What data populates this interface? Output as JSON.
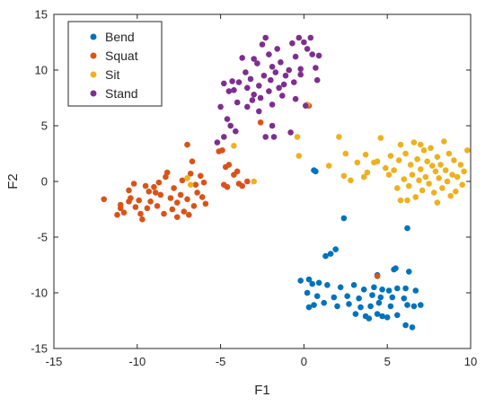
{
  "colors": {
    "Bend": "#0072BD",
    "Squat": "#D95319",
    "Sit": "#EDB120",
    "Stand": "#7E2F8E",
    "axis": "#262626",
    "background": "#ffffff"
  },
  "chart_data": {
    "type": "scatter",
    "xlabel": "F1",
    "ylabel": "F2",
    "xlim": [
      -15,
      10
    ],
    "ylim": [
      -15,
      15
    ],
    "xticks": [
      -15,
      -10,
      -5,
      0,
      5,
      10
    ],
    "yticks": [
      -15,
      -10,
      -5,
      0,
      5,
      10,
      15
    ],
    "grid": false,
    "legend_position": "top-left",
    "series": [
      {
        "name": "Bend",
        "color": "#0072BD",
        "points": [
          [
            0.6,
            1.0
          ],
          [
            0.7,
            0.9
          ],
          [
            2.4,
            -3.3
          ],
          [
            6.2,
            -4.2
          ],
          [
            1.9,
            -6.1
          ],
          [
            1.6,
            -6.5
          ],
          [
            1.3,
            -6.7
          ],
          [
            4.4,
            -8.4
          ],
          [
            5.4,
            -7.9
          ],
          [
            5.5,
            -7.8
          ],
          [
            6.3,
            -8.1
          ],
          [
            0.3,
            -8.8
          ],
          [
            -0.2,
            -8.9
          ],
          [
            0.5,
            -9.2
          ],
          [
            0.9,
            -9.1
          ],
          [
            1.4,
            -9.3
          ],
          [
            2.2,
            -9.5
          ],
          [
            3.0,
            -9.3
          ],
          [
            3.6,
            -9.7
          ],
          [
            4.2,
            -9.5
          ],
          [
            4.7,
            -9.7
          ],
          [
            5.1,
            -9.8
          ],
          [
            5.6,
            -9.6
          ],
          [
            6.1,
            -9.6
          ],
          [
            6.7,
            -9.8
          ],
          [
            0.2,
            -10.0
          ],
          [
            0.8,
            -10.3
          ],
          [
            1.8,
            -10.4
          ],
          [
            2.6,
            -10.3
          ],
          [
            3.3,
            -10.5
          ],
          [
            4.1,
            -10.2
          ],
          [
            4.6,
            -10.4
          ],
          [
            5.3,
            -10.4
          ],
          [
            6.0,
            -10.5
          ],
          [
            0.6,
            -11.1
          ],
          [
            1.2,
            -10.9
          ],
          [
            2.0,
            -11.2
          ],
          [
            2.7,
            -11.0
          ],
          [
            3.4,
            -11.3
          ],
          [
            4.0,
            -11.2
          ],
          [
            4.5,
            -10.9
          ],
          [
            5.2,
            -11.2
          ],
          [
            6.2,
            -11.1
          ],
          [
            6.6,
            -11.2
          ],
          [
            7.0,
            -11.1
          ],
          [
            0.3,
            -11.3
          ],
          [
            3.1,
            -11.9
          ],
          [
            3.7,
            -12.1
          ],
          [
            4.4,
            -11.9
          ],
          [
            5.0,
            -12.2
          ],
          [
            5.6,
            -12.0
          ],
          [
            3.9,
            -12.3
          ],
          [
            6.1,
            -12.9
          ],
          [
            6.5,
            -13.1
          ],
          [
            4.7,
            -12.1
          ]
        ]
      },
      {
        "name": "Squat",
        "color": "#D95319",
        "points": [
          [
            -12.0,
            -1.6
          ],
          [
            -11.0,
            -2.1
          ],
          [
            -11.2,
            -3.0
          ],
          [
            -10.8,
            -2.8
          ],
          [
            -10.5,
            -0.8
          ],
          [
            -10.2,
            -0.2
          ],
          [
            -10.4,
            -1.5
          ],
          [
            -10.1,
            -2.3
          ],
          [
            -9.9,
            -1.7
          ],
          [
            -9.7,
            -3.4
          ],
          [
            -9.4,
            -2.4
          ],
          [
            -9.3,
            -0.9
          ],
          [
            -9.0,
            -0.5
          ],
          [
            -9.2,
            -1.8
          ],
          [
            -8.8,
            -2.2
          ],
          [
            -8.7,
            -0.1
          ],
          [
            -8.6,
            -1.2
          ],
          [
            -8.4,
            -2.9
          ],
          [
            -8.3,
            0.4
          ],
          [
            -8.2,
            0.8
          ],
          [
            -8.0,
            -1.5
          ],
          [
            -7.9,
            -2.5
          ],
          [
            -7.8,
            -0.6
          ],
          [
            -7.6,
            -1.9
          ],
          [
            -7.4,
            -1.2
          ],
          [
            -7.3,
            0.1
          ],
          [
            -7.2,
            -2.7
          ],
          [
            -7.0,
            -1.6
          ],
          [
            -6.9,
            -3.0
          ],
          [
            -6.7,
            1.8
          ],
          [
            -6.8,
            0.7
          ],
          [
            -6.5,
            -0.3
          ],
          [
            -6.6,
            -2.2
          ],
          [
            -6.4,
            -1.0
          ],
          [
            -6.2,
            0.5
          ],
          [
            -6.1,
            -1.4
          ],
          [
            -6.0,
            -0.1
          ],
          [
            -5.9,
            -2.0
          ],
          [
            -7.0,
            3.3
          ],
          [
            -5.1,
            2.7
          ],
          [
            -4.9,
            2.8
          ],
          [
            -4.7,
            1.3
          ],
          [
            -4.5,
            1.5
          ],
          [
            -4.8,
            -0.3
          ],
          [
            -4.6,
            -0.5
          ],
          [
            -4.2,
            0.6
          ],
          [
            -4.0,
            0.9
          ],
          [
            -3.9,
            -0.2
          ],
          [
            -3.7,
            -0.4
          ],
          [
            -3.4,
            0.0
          ],
          [
            -2.6,
            5.3
          ],
          [
            0.3,
            6.8
          ],
          [
            4.4,
            -8.5
          ],
          [
            -10.5,
            -1.8
          ],
          [
            -9.5,
            -0.4
          ],
          [
            -8.9,
            -1.0
          ],
          [
            -11.0,
            -2.4
          ],
          [
            -7.6,
            -3.2
          ],
          [
            -9.8,
            -2.9
          ]
        ]
      },
      {
        "name": "Sit",
        "color": "#EDB120",
        "points": [
          [
            -7.0,
            0.3
          ],
          [
            -6.8,
            -0.3
          ],
          [
            -4.2,
            3.2
          ],
          [
            -3.0,
            0.0
          ],
          [
            -0.4,
            4.0
          ],
          [
            0.2,
            6.9
          ],
          [
            -0.3,
            2.3
          ],
          [
            1.5,
            1.4
          ],
          [
            2.1,
            4.0
          ],
          [
            2.4,
            0.5
          ],
          [
            2.5,
            2.5
          ],
          [
            3.2,
            1.7
          ],
          [
            3.7,
            2.4
          ],
          [
            2.8,
            0.1
          ],
          [
            3.6,
            0.4
          ],
          [
            4.2,
            1.7
          ],
          [
            4.4,
            1.8
          ],
          [
            4.6,
            3.9
          ],
          [
            4.9,
            1.2
          ],
          [
            5.1,
            0.6
          ],
          [
            5.2,
            2.3
          ],
          [
            5.4,
            1.0
          ],
          [
            5.6,
            -0.6
          ],
          [
            5.7,
            1.9
          ],
          [
            5.8,
            3.3
          ],
          [
            6.0,
            0.2
          ],
          [
            6.1,
            2.5
          ],
          [
            6.3,
            -0.4
          ],
          [
            6.4,
            1.5
          ],
          [
            6.5,
            0.6
          ],
          [
            6.6,
            3.5
          ],
          [
            6.7,
            -1.4
          ],
          [
            6.8,
            2.0
          ],
          [
            6.9,
            0.1
          ],
          [
            7.0,
            1.1
          ],
          [
            7.1,
            -0.8
          ],
          [
            7.2,
            2.8
          ],
          [
            7.3,
            0.4
          ],
          [
            7.4,
            1.8
          ],
          [
            7.5,
            -0.2
          ],
          [
            7.6,
            3.0
          ],
          [
            7.7,
            1.4
          ],
          [
            7.8,
            -1.0
          ],
          [
            7.9,
            0.9
          ],
          [
            8.0,
            2.2
          ],
          [
            8.1,
            0.3
          ],
          [
            8.2,
            1.5
          ],
          [
            8.3,
            -0.6
          ],
          [
            8.4,
            3.6
          ],
          [
            8.5,
            1.0
          ],
          [
            8.6,
            0.0
          ],
          [
            8.7,
            2.5
          ],
          [
            8.8,
            -1.3
          ],
          [
            8.9,
            0.6
          ],
          [
            9.0,
            1.9
          ],
          [
            9.1,
            -0.9
          ],
          [
            9.2,
            0.4
          ],
          [
            9.4,
            1.5
          ],
          [
            9.6,
            0.9
          ],
          [
            9.8,
            2.8
          ],
          [
            9.5,
            -0.3
          ],
          [
            5.8,
            -1.7
          ],
          [
            6.2,
            -1.7
          ],
          [
            8.0,
            -1.9
          ],
          [
            7.0,
            3.3
          ],
          [
            3.8,
            0.8
          ]
        ]
      },
      {
        "name": "Stand",
        "color": "#7E2F8E",
        "points": [
          [
            -3.7,
            11.1
          ],
          [
            -4.2,
            8.2
          ],
          [
            -3.5,
            9.8
          ],
          [
            -3.2,
            9.2
          ],
          [
            -3.0,
            11.0
          ],
          [
            -2.8,
            10.6
          ],
          [
            -2.5,
            12.3
          ],
          [
            -2.3,
            12.9
          ],
          [
            -2.1,
            11.4
          ],
          [
            -2.4,
            9.5
          ],
          [
            -2.0,
            9.1
          ],
          [
            -1.9,
            10.3
          ],
          [
            -1.6,
            11.9
          ],
          [
            -1.4,
            10.7
          ],
          [
            -1.7,
            9.8
          ],
          [
            -1.2,
            8.7
          ],
          [
            -0.9,
            10.0
          ],
          [
            -0.7,
            12.4
          ],
          [
            -0.5,
            11.2
          ],
          [
            -0.3,
            12.9
          ],
          [
            0.0,
            12.5
          ],
          [
            0.2,
            11.9
          ],
          [
            0.4,
            12.9
          ],
          [
            0.5,
            11.4
          ],
          [
            0.7,
            10.2
          ],
          [
            0.8,
            9.1
          ],
          [
            0.9,
            11.3
          ],
          [
            -0.2,
            10.1
          ],
          [
            -0.6,
            8.9
          ],
          [
            -1.1,
            9.5
          ],
          [
            -2.7,
            8.6
          ],
          [
            -3.0,
            7.8
          ],
          [
            -3.9,
            8.9
          ],
          [
            -4.3,
            9.0
          ],
          [
            -4.5,
            8.1
          ],
          [
            -4.0,
            7.1
          ],
          [
            -3.4,
            6.7
          ],
          [
            -2.6,
            7.5
          ],
          [
            -1.9,
            6.9
          ],
          [
            -1.3,
            7.7
          ],
          [
            -0.5,
            7.4
          ],
          [
            0.1,
            6.8
          ],
          [
            -5.0,
            6.7
          ],
          [
            -4.6,
            5.6
          ],
          [
            -4.4,
            5.0
          ],
          [
            -4.8,
            4.0
          ],
          [
            -5.2,
            3.5
          ],
          [
            -4.1,
            4.5
          ],
          [
            -2.3,
            4.0
          ],
          [
            -1.9,
            5.0
          ],
          [
            -1.8,
            4.0
          ],
          [
            -0.8,
            4.4
          ],
          [
            -3.4,
            8.4
          ],
          [
            -2.1,
            8.1
          ],
          [
            -1.5,
            8.4
          ],
          [
            -0.2,
            9.6
          ],
          [
            -4.8,
            8.8
          ],
          [
            -3.1,
            7.3
          ],
          [
            -2.7,
            6.3
          ]
        ]
      }
    ]
  }
}
